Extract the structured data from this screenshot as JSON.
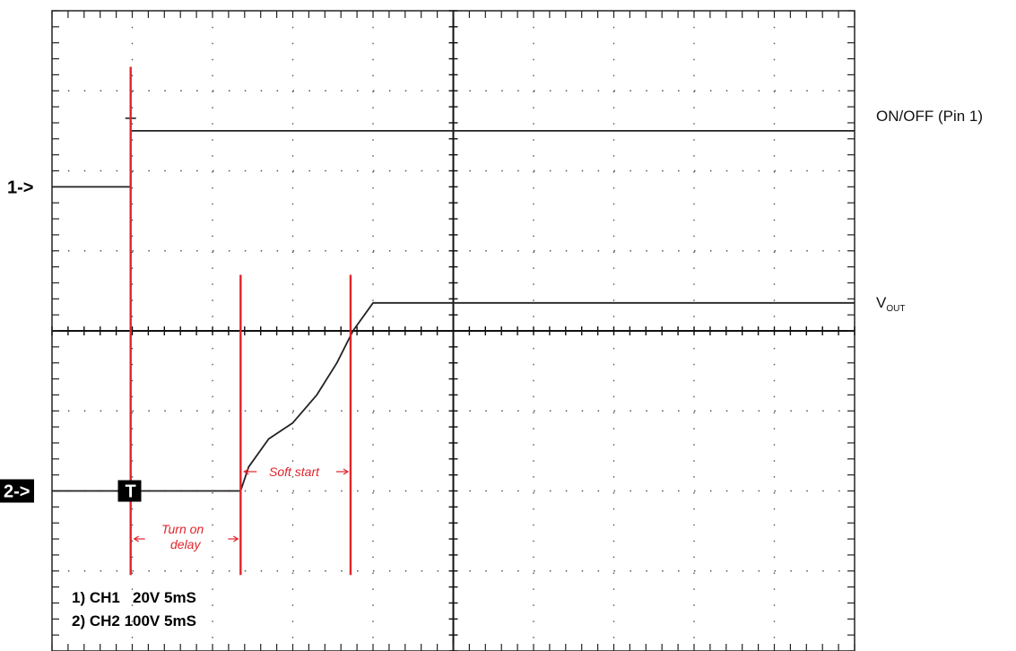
{
  "chart_data": {
    "type": "line",
    "title": "",
    "xlabel": "",
    "ylabel": "",
    "grid": "dotted, 10 x 8 divisions",
    "xlim": [
      0,
      10
    ],
    "ylim": [
      0,
      8
    ],
    "series": [
      {
        "name": "ON/OFF (Pin 1)",
        "x": [
          0,
          0.98,
          0.98,
          10
        ],
        "y": [
          5.8,
          5.8,
          6.5,
          6.5
        ],
        "color": "#222222"
      },
      {
        "name": "VOUT",
        "x": [
          0,
          2.35,
          2.45,
          2.7,
          3.0,
          3.3,
          3.55,
          3.75,
          4.0,
          10
        ],
        "y": [
          2.0,
          2.0,
          2.3,
          2.65,
          2.85,
          3.2,
          3.6,
          4.0,
          4.35,
          4.35
        ],
        "color": "#222222"
      }
    ],
    "markers": [
      {
        "name": "turn-on-marker",
        "x": 0.98,
        "color": "#e0232a"
      },
      {
        "name": "soft-start-begin-marker",
        "x": 2.35,
        "color": "#e0232a"
      },
      {
        "name": "soft-start-end-marker",
        "x": 3.72,
        "color": "#e0232a"
      }
    ],
    "channel_markers": {
      "ch1": {
        "label": "1->",
        "y": 5.8
      },
      "ch2": {
        "label": "2->",
        "y": 2.0
      },
      "trigger": {
        "label": "T",
        "x": 1.0,
        "y": 2.0
      }
    },
    "series_labels": {
      "on_off": "ON/OFF (Pin 1)",
      "vout_main": "V",
      "vout_sub": "OUT"
    },
    "annotations": {
      "soft_start": "Soft start",
      "turn_on_line1": "Turn on",
      "turn_on_line2": "delay"
    },
    "settings": {
      "ch1": "1) CH1   20V 5mS",
      "ch2": "2) CH2 100V 5mS"
    },
    "colors": {
      "trace": "#222222",
      "marker": "#e0232a",
      "grid": "#555555",
      "background": "#ffffff"
    }
  }
}
